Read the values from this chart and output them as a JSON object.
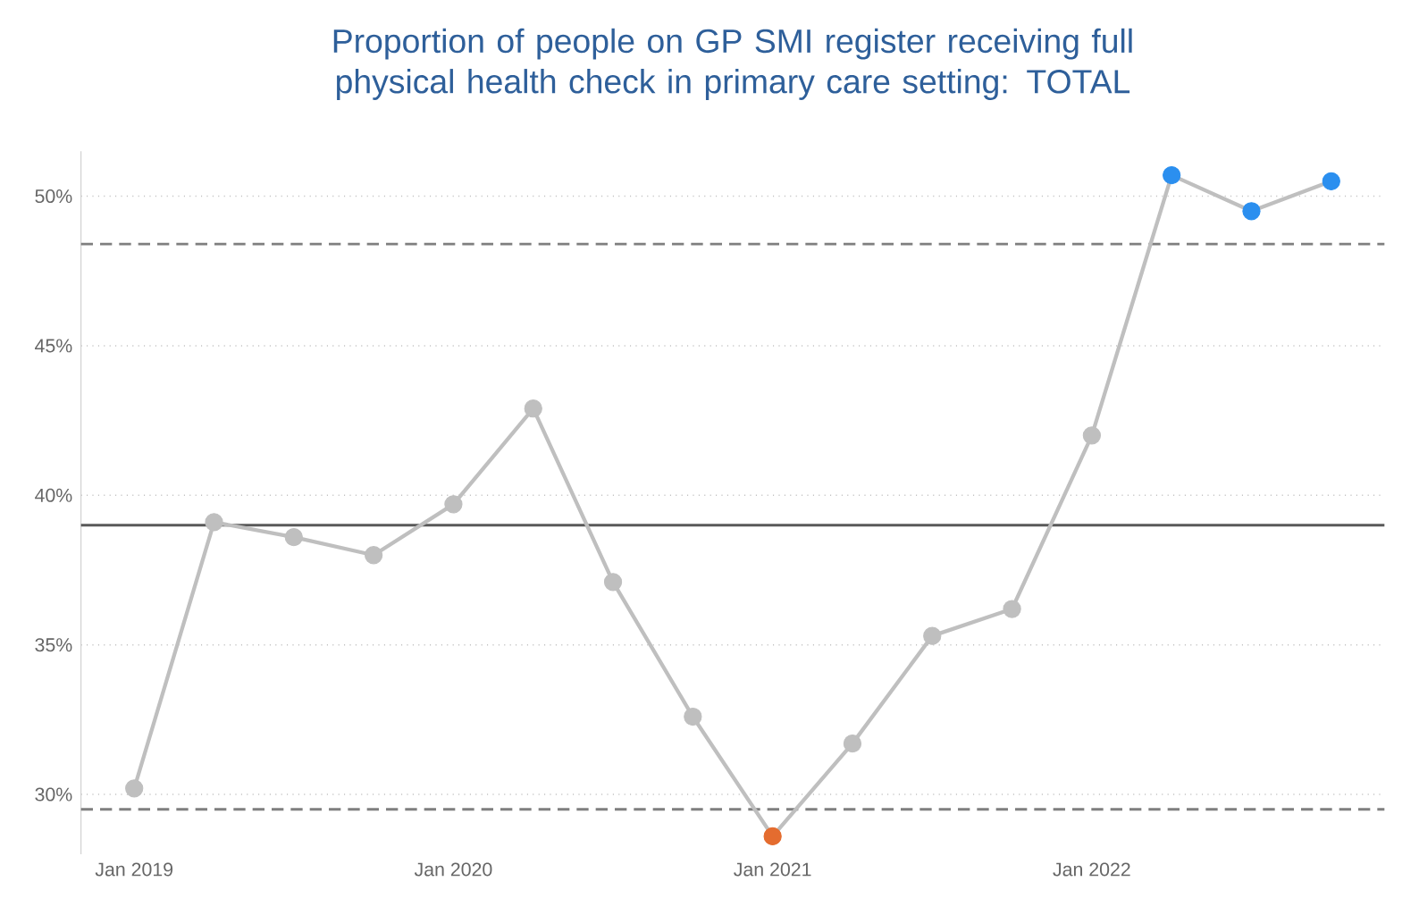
{
  "chart_data": {
    "type": "line",
    "title": "Proportion of people on GP SMI register receiving full physical health check in primary care setting: TOTAL",
    "x": [
      "2019-01",
      "2019-04",
      "2019-07",
      "2019-10",
      "2020-01",
      "2020-04",
      "2020-07",
      "2020-10",
      "2021-01",
      "2021-04",
      "2021-07",
      "2021-10",
      "2022-01",
      "2022-04",
      "2022-07",
      "2022-10"
    ],
    "series": [
      {
        "color": "#bfbfbf",
        "values": [
          30.2,
          39.1,
          38.6,
          38.0,
          39.7,
          42.9,
          37.1,
          32.6,
          28.6,
          31.7,
          35.3,
          36.2,
          42.0,
          50.7,
          49.5,
          50.5
        ],
        "colors": [
          "#bfbfbf",
          "#bfbfbf",
          "#bfbfbf",
          "#bfbfbf",
          "#bfbfbf",
          "#bfbfbf",
          "#bfbfbf",
          "#bfbfbf",
          "#e46c2f",
          "#bfbfbf",
          "#bfbfbf",
          "#bfbfbf",
          "#bfbfbf",
          "#2b8fef",
          "#2b8fef",
          "#2b8fef"
        ]
      }
    ],
    "xlim": [
      "2018-11",
      "2022-12"
    ],
    "xticks": [
      {
        "value": "2019-01",
        "label": "Jan 2019"
      },
      {
        "value": "2020-01",
        "label": "Jan 2020"
      },
      {
        "value": "2021-01",
        "label": "Jan 2021"
      },
      {
        "value": "2022-01",
        "label": "Jan 2022"
      }
    ],
    "yticks": [
      {
        "value": 30,
        "label": "30%"
      },
      {
        "value": 35,
        "label": "35%"
      },
      {
        "value": 40,
        "label": "40%"
      },
      {
        "value": 45,
        "label": "45%"
      },
      {
        "value": 50,
        "label": "50%"
      }
    ],
    "ylim": [
      28,
      51.5
    ],
    "grid": "y",
    "marker": "circle",
    "line_style": "solid",
    "ref_lines": [
      {
        "axis": "y",
        "value": 48.4,
        "color": "#7f7f7f",
        "line_style": "dashed"
      },
      {
        "axis": "y",
        "value": 39.0,
        "color": "#595959",
        "line_style": "solid"
      },
      {
        "axis": "y",
        "value": 29.5,
        "color": "#7f7f7f",
        "line_style": "dashed"
      }
    ]
  }
}
